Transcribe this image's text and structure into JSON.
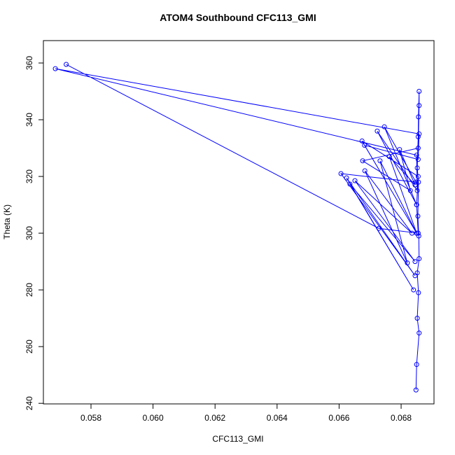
{
  "chart_data": {
    "type": "line",
    "markers": true,
    "title": "ATOM4 Southbound CFC113_GMI",
    "x_label": "CFC113_GMI",
    "y_label": "Theta (K)",
    "color": "#0000ff",
    "x": [
      0.0572,
      0.06728,
      0.06855,
      0.0685,
      0.06855,
      0.06674,
      0.0685,
      0.06682,
      0.06855,
      0.06858,
      0.05685,
      0.0685,
      0.06852,
      0.06723,
      0.0685,
      0.06746,
      0.06848,
      0.06606,
      0.06845,
      0.06624,
      0.0684,
      0.06635,
      0.06845,
      0.06651,
      0.06835,
      0.06683,
      0.0682,
      0.06732,
      0.0685,
      0.06762,
      0.06845,
      0.06795,
      0.0683,
      0.06676,
      0.06855,
      0.06858,
      0.06858,
      0.06856,
      0.06855,
      0.06852,
      0.06856,
      0.06854,
      0.06857,
      0.06858,
      0.06852,
      0.06856,
      0.06852,
      0.06858,
      0.0685,
      0.06848
    ],
    "values": [
      359.5,
      301.7,
      300,
      310,
      320,
      332.5,
      300,
      331,
      326,
      335,
      358,
      327.5,
      315,
      336,
      310,
      337.5,
      318,
      321,
      285,
      319.5,
      280,
      317.3,
      290,
      318.5,
      300,
      322,
      289.5,
      325.5,
      300,
      327,
      317,
      329.5,
      315,
      325.5,
      330,
      345,
      350,
      341,
      334,
      323,
      318,
      306,
      299,
      291,
      286,
      279,
      270,
      264.8,
      253.7,
      244.7
    ],
    "xlim": [
      0.056465,
      0.06906
    ],
    "xticks": [
      0.058,
      {
        "value": 0.06,
        "label": "0.060"
      },
      0.062,
      0.064,
      0.066,
      0.068
    ],
    "ylim": [
      239.8,
      367.9
    ],
    "yticks": [
      240,
      260,
      280,
      300,
      320,
      340,
      360
    ]
  }
}
